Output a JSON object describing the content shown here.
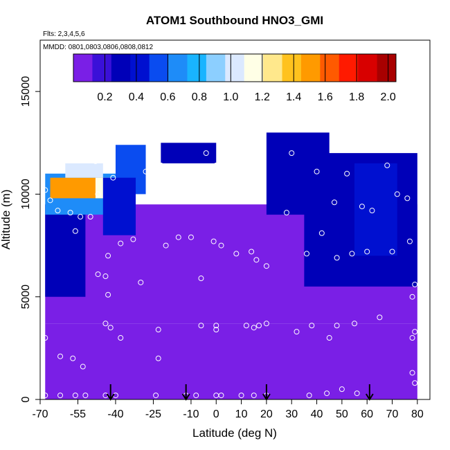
{
  "chart_data": {
    "type": "heatmap",
    "title": "ATOM1 Southbound HNO3_GMI",
    "flights_label": "Flts: 2,3,4,5,6",
    "dates_label": "MMDD: 0801,0803,0806,0808,0812",
    "xlabel": "Latitude (deg N)",
    "ylabel": "Altitude (m)",
    "xlim": [
      -70,
      85
    ],
    "ylim": [
      0,
      17500
    ],
    "x_ticks": [
      "-70",
      "-55",
      "-40",
      "-25",
      "-10",
      "0",
      "10",
      "20",
      "30",
      "40",
      "50",
      "60",
      "70",
      "80"
    ],
    "x_tick_values": [
      -70,
      -55,
      -40,
      -25,
      -10,
      0,
      10,
      20,
      30,
      40,
      50,
      60,
      70,
      80
    ],
    "y_ticks": [
      "0",
      "5000",
      "10000",
      "15000"
    ],
    "y_tick_values": [
      0,
      5000,
      10000,
      15000
    ],
    "colorbar": {
      "range": [
        0,
        2.05
      ],
      "ticks": [
        "0.2",
        "0.4",
        "0.6",
        "0.8",
        "1.0",
        "1.2",
        "1.4",
        "1.6",
        "1.8",
        "2.0"
      ],
      "tick_values": [
        0.2,
        0.4,
        0.6,
        0.8,
        1.0,
        1.2,
        1.4,
        1.6,
        1.8,
        2.0
      ],
      "colors": [
        "#7a1fe6",
        "#3a10d8",
        "#0000b8",
        "#0010d0",
        "#0a4cf0",
        "#1e8cf8",
        "#19b4ff",
        "#8ccfff",
        "#dbe9ff",
        "#ffffe6",
        "#ffe88c",
        "#ffc21e",
        "#ff9a00",
        "#ff5a00",
        "#ff1a00",
        "#d80000",
        "#a80000"
      ]
    },
    "profile_arrows_lat": [
      -42,
      -12,
      20,
      61
    ],
    "grid": false,
    "field_regions": [
      {
        "lat": [
          -68,
          80
        ],
        "alt": [
          0,
          3700
        ],
        "value": 0.05
      },
      {
        "lat": [
          -68,
          80
        ],
        "alt": [
          3700,
          9500
        ],
        "value": 0.06
      },
      {
        "lat": [
          -68,
          -52
        ],
        "alt": [
          5000,
          9500
        ],
        "value": 0.35
      },
      {
        "lat": [
          -68,
          -40
        ],
        "alt": [
          9000,
          11000
        ],
        "value": 0.7
      },
      {
        "lat": [
          -66,
          -44
        ],
        "alt": [
          9800,
          10800
        ],
        "value": 1.5
      },
      {
        "lat": [
          -48,
          -38
        ],
        "alt": [
          9800,
          10800
        ],
        "value": 1.1
      },
      {
        "lat": [
          -60,
          -45
        ],
        "alt": [
          10800,
          11500
        ],
        "value": 1.0
      },
      {
        "lat": [
          -40,
          -28
        ],
        "alt": [
          10000,
          12400
        ],
        "value": 0.55
      },
      {
        "lat": [
          -45,
          -32
        ],
        "alt": [
          8000,
          10800
        ],
        "value": 0.45
      },
      {
        "lat": [
          -22,
          0
        ],
        "alt": [
          11500,
          12500
        ],
        "value": 0.3
      },
      {
        "lat": [
          20,
          45
        ],
        "alt": [
          9000,
          13000
        ],
        "value": 0.3
      },
      {
        "lat": [
          35,
          80
        ],
        "alt": [
          5500,
          12000
        ],
        "value": 0.3
      },
      {
        "lat": [
          55,
          72
        ],
        "alt": [
          7000,
          11500
        ],
        "value": 0.4
      }
    ],
    "observation_points": [
      [
        -68,
        10200
      ],
      [
        -66,
        9700
      ],
      [
        -63,
        9200
      ],
      [
        -58,
        9100
      ],
      [
        -56,
        8200
      ],
      [
        -54,
        8900
      ],
      [
        -50,
        8900
      ],
      [
        -48,
        11600
      ],
      [
        -47,
        10000
      ],
      [
        -43,
        7000
      ],
      [
        -41,
        10800
      ],
      [
        -38,
        7600
      ],
      [
        -33,
        7800
      ],
      [
        -28,
        11100
      ],
      [
        -22,
        11400
      ],
      [
        -20,
        7500
      ],
      [
        -20,
        10000
      ],
      [
        -15,
        7900
      ],
      [
        -10,
        7900
      ],
      [
        -6,
        5900
      ],
      [
        -4,
        12000
      ],
      [
        -1,
        7700
      ],
      [
        0,
        11400
      ],
      [
        2,
        7500
      ],
      [
        8,
        7100
      ],
      [
        12,
        10400
      ],
      [
        14,
        7200
      ],
      [
        16,
        6800
      ],
      [
        18,
        9700
      ],
      [
        20,
        6500
      ],
      [
        28,
        9100
      ],
      [
        30,
        12000
      ],
      [
        36,
        7100
      ],
      [
        40,
        11100
      ],
      [
        42,
        8100
      ],
      [
        47,
        9600
      ],
      [
        48,
        6900
      ],
      [
        52,
        11000
      ],
      [
        54,
        7100
      ],
      [
        58,
        9400
      ],
      [
        60,
        7200
      ],
      [
        62,
        9200
      ],
      [
        68,
        11400
      ],
      [
        70,
        7200
      ],
      [
        72,
        10000
      ],
      [
        76,
        9800
      ],
      [
        77,
        7700
      ],
      [
        78,
        5000
      ],
      [
        79,
        5600
      ],
      [
        -68,
        3000
      ],
      [
        -62,
        2100
      ],
      [
        -57,
        2000
      ],
      [
        -53,
        1600
      ],
      [
        -44,
        3700
      ],
      [
        -42,
        3500
      ],
      [
        -38,
        3000
      ],
      [
        -23,
        3400
      ],
      [
        -23,
        2000
      ],
      [
        -30,
        5700
      ],
      [
        -43,
        5100
      ],
      [
        -44,
        6000
      ],
      [
        -47,
        6100
      ],
      [
        -6,
        3600
      ],
      [
        0,
        3600
      ],
      [
        0,
        3400
      ],
      [
        12,
        3600
      ],
      [
        15,
        3500
      ],
      [
        17,
        3600
      ],
      [
        20,
        3700
      ],
      [
        32,
        3300
      ],
      [
        38,
        3600
      ],
      [
        45,
        3000
      ],
      [
        48,
        3600
      ],
      [
        55,
        3700
      ],
      [
        65,
        4000
      ],
      [
        78,
        3000
      ],
      [
        79,
        3300
      ],
      [
        78,
        1300
      ],
      [
        79,
        800
      ],
      [
        -68,
        200
      ],
      [
        -62,
        200
      ],
      [
        -56,
        200
      ],
      [
        -52,
        200
      ],
      [
        -44,
        200
      ],
      [
        -40,
        200
      ],
      [
        -24,
        200
      ],
      [
        -12,
        200
      ],
      [
        -8,
        200
      ],
      [
        0,
        200
      ],
      [
        2,
        200
      ],
      [
        10,
        200
      ],
      [
        15,
        200
      ],
      [
        20,
        200
      ],
      [
        37,
        200
      ],
      [
        44,
        300
      ],
      [
        50,
        500
      ],
      [
        56,
        300
      ]
    ]
  }
}
